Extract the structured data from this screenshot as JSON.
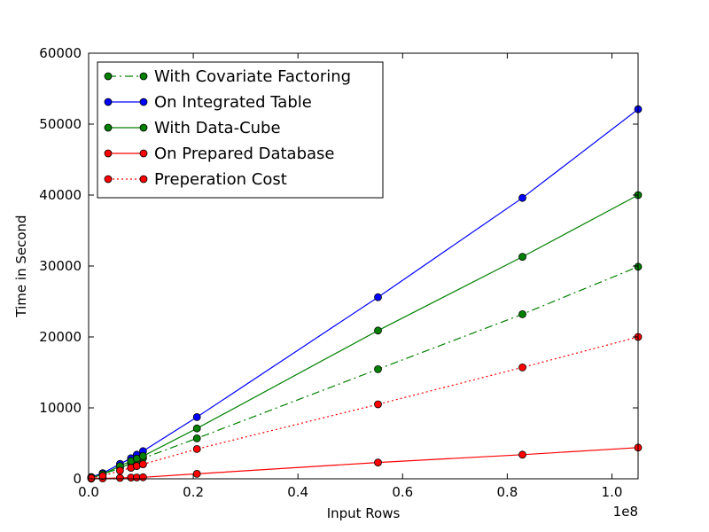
{
  "chart_data": {
    "type": "line",
    "title": "",
    "xlabel": "Input Rows",
    "ylabel": "Time in Second",
    "x_offset_label": "1e8",
    "x_scale": 100000000,
    "xlim": [
      0,
      105000000
    ],
    "ylim": [
      0,
      60000
    ],
    "x_ticks": [
      0,
      20000000,
      40000000,
      60000000,
      80000000,
      100000000
    ],
    "x_tick_labels": [
      "0.0",
      "0.2",
      "0.4",
      "0.6",
      "0.8",
      "1.0"
    ],
    "y_ticks": [
      0,
      10000,
      20000,
      30000,
      40000,
      50000,
      60000
    ],
    "y_tick_labels": [
      "0",
      "10000",
      "20000",
      "30000",
      "40000",
      "50000",
      "60000"
    ],
    "grid": false,
    "legend_position": "top-left",
    "x": [
      500000,
      2700000,
      6000000,
      8100000,
      9200000,
      10400000,
      20700000,
      55300000,
      82900000,
      105000000
    ],
    "series": [
      {
        "name": "With Covariate Factoring",
        "color": "#008000",
        "linestyle": "dashdot",
        "values": [
          150,
          650,
          1500,
          2200,
          2550,
          2900,
          5700,
          15450,
          23200,
          29900
        ]
      },
      {
        "name": "On Integrated Table",
        "color": "#0000ff",
        "linestyle": "solid",
        "values": [
          250,
          800,
          2100,
          2900,
          3400,
          3900,
          8700,
          25600,
          39600,
          52100
        ]
      },
      {
        "name": "With Data-Cube",
        "color": "#008000",
        "linestyle": "solid",
        "values": [
          200,
          650,
          1800,
          2500,
          2850,
          3200,
          7100,
          20900,
          31300,
          40000
        ]
      },
      {
        "name": "On Prepared Database",
        "color": "#ff0000",
        "linestyle": "solid",
        "values": [
          20,
          60,
          120,
          170,
          190,
          210,
          700,
          2300,
          3400,
          4400
        ]
      },
      {
        "name": "Preperation Cost",
        "color": "#ff0000",
        "linestyle": "dotted",
        "values": [
          100,
          400,
          1150,
          1550,
          1800,
          2050,
          4200,
          10500,
          15700,
          20000
        ]
      }
    ]
  }
}
